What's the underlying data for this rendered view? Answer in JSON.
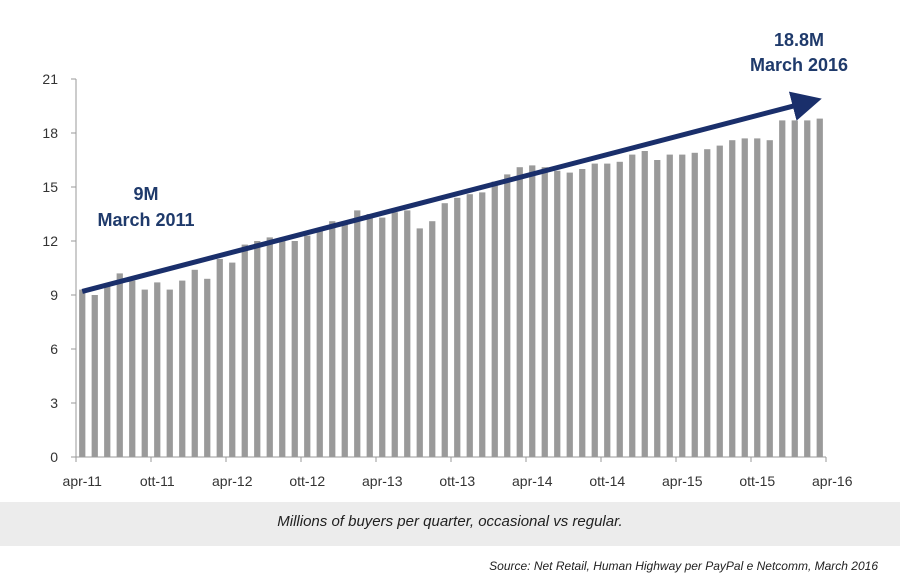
{
  "chart_data": {
    "type": "bar",
    "title": "",
    "xlabel": "",
    "ylabel": "",
    "ylim": [
      0,
      21
    ],
    "yticks": [
      0,
      3,
      6,
      9,
      12,
      15,
      18,
      21
    ],
    "x_tick_labels": [
      "apr-11",
      "ott-11",
      "apr-12",
      "ott-12",
      "apr-13",
      "ott-13",
      "apr-14",
      "ott-14",
      "apr-15",
      "ott-15",
      "apr-16"
    ],
    "bar_color": "#9a9a9a",
    "trend_color": "#1a2f6b",
    "values": [
      9.3,
      9.0,
      9.5,
      10.2,
      9.8,
      9.3,
      9.7,
      9.3,
      9.8,
      10.4,
      9.9,
      11.0,
      10.8,
      11.8,
      12.0,
      12.2,
      12.2,
      12.0,
      12.3,
      12.7,
      13.1,
      13.1,
      13.7,
      13.5,
      13.3,
      13.6,
      13.7,
      12.7,
      13.1,
      14.1,
      14.4,
      14.6,
      14.7,
      15.3,
      15.7,
      16.1,
      16.2,
      16.1,
      15.9,
      15.8,
      16.0,
      16.3,
      16.3,
      16.4,
      16.8,
      17.0,
      16.5,
      16.8,
      16.8,
      16.9,
      17.1,
      17.3,
      17.6,
      17.7,
      17.7,
      17.6,
      18.7,
      18.7,
      18.7,
      18.8
    ],
    "annotations": [
      {
        "lines": [
          "9M",
          "March 2011"
        ],
        "value": 9
      },
      {
        "lines": [
          "18.8M",
          "March 2016"
        ],
        "value": 18.8
      }
    ]
  },
  "caption": "Millions of buyers per quarter, occasional vs regular.",
  "source": "Source: Net Retail, Human Highway per PayPal e Netcomm,  March 2016"
}
